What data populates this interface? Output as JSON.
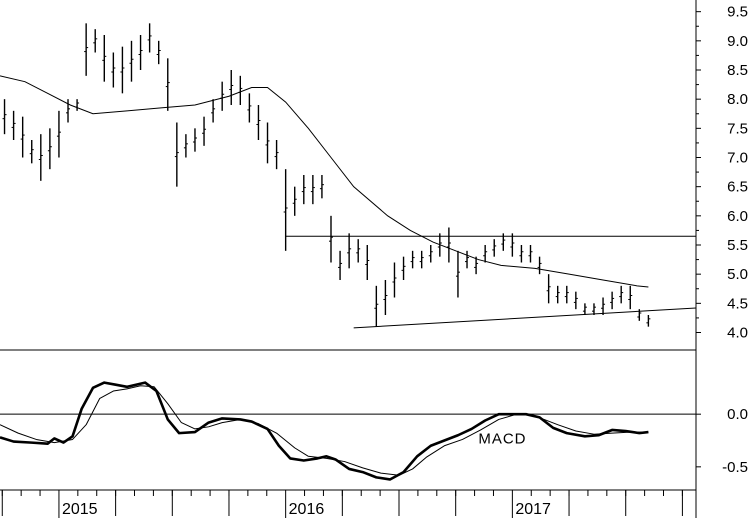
{
  "chart_data": [
    {
      "type": "ohlc",
      "panel": "price",
      "title": "",
      "xlabel": "",
      "ylabel": "",
      "ylim": [
        3.7,
        9.7
      ],
      "yticks": [
        4.0,
        4.5,
        5.0,
        5.5,
        6.0,
        6.5,
        7.0,
        7.5,
        8.0,
        8.5,
        9.0,
        9.5
      ],
      "ytick_labels": [
        "4.0",
        "4.5",
        "5.0",
        "5.5",
        "6.0",
        "6.5",
        "7.0",
        "7.5",
        "8.0",
        "8.5",
        "9.0",
        "9.5"
      ],
      "xlim": [
        2014.74,
        2017.81
      ],
      "x_year_labels": [
        {
          "x": 2015.0,
          "label": "2015"
        },
        {
          "x": 2016.0,
          "label": "2016"
        },
        {
          "x": 2017.0,
          "label": "2017"
        }
      ],
      "bars": [
        [
          2014.76,
          8.0,
          7.4
        ],
        [
          2014.8,
          7.8,
          7.3
        ],
        [
          2014.84,
          7.7,
          7.0
        ],
        [
          2014.88,
          7.3,
          6.9
        ],
        [
          2014.92,
          7.4,
          6.6
        ],
        [
          2014.96,
          7.5,
          6.8
        ],
        [
          2015.0,
          7.8,
          7.0
        ],
        [
          2015.04,
          8.0,
          7.6
        ],
        [
          2015.08,
          8.0,
          7.8
        ],
        [
          2015.12,
          9.3,
          8.4
        ],
        [
          2015.16,
          9.2,
          8.8
        ],
        [
          2015.2,
          9.1,
          8.3
        ],
        [
          2015.24,
          8.8,
          8.2
        ],
        [
          2015.28,
          8.9,
          8.1
        ],
        [
          2015.32,
          9.0,
          8.3
        ],
        [
          2015.36,
          9.1,
          8.5
        ],
        [
          2015.4,
          9.3,
          8.8
        ],
        [
          2015.44,
          9.0,
          8.6
        ],
        [
          2015.48,
          8.7,
          7.8
        ],
        [
          2015.52,
          7.6,
          6.5
        ],
        [
          2015.56,
          7.4,
          7.0
        ],
        [
          2015.6,
          7.5,
          7.1
        ],
        [
          2015.64,
          7.7,
          7.2
        ],
        [
          2015.68,
          8.0,
          7.6
        ],
        [
          2015.72,
          8.3,
          7.8
        ],
        [
          2015.76,
          8.5,
          7.9
        ],
        [
          2015.8,
          8.4,
          7.9
        ],
        [
          2015.84,
          8.1,
          7.6
        ],
        [
          2015.88,
          7.9,
          7.3
        ],
        [
          2015.92,
          7.6,
          6.9
        ],
        [
          2015.96,
          7.3,
          6.8
        ],
        [
          2016.0,
          6.8,
          5.4
        ],
        [
          2016.04,
          6.5,
          6.0
        ],
        [
          2016.08,
          6.7,
          6.2
        ],
        [
          2016.12,
          6.7,
          6.2
        ],
        [
          2016.16,
          6.7,
          6.3
        ],
        [
          2016.2,
          6.0,
          5.2
        ],
        [
          2016.24,
          5.4,
          4.9
        ],
        [
          2016.28,
          5.7,
          5.1
        ],
        [
          2016.32,
          5.6,
          5.2
        ],
        [
          2016.36,
          5.5,
          4.9
        ],
        [
          2016.4,
          4.8,
          4.1
        ],
        [
          2016.44,
          4.9,
          4.3
        ],
        [
          2016.48,
          5.2,
          4.6
        ],
        [
          2016.52,
          5.3,
          4.9
        ],
        [
          2016.56,
          5.4,
          5.1
        ],
        [
          2016.6,
          5.4,
          5.1
        ],
        [
          2016.64,
          5.5,
          5.2
        ],
        [
          2016.68,
          5.7,
          5.3
        ],
        [
          2016.72,
          5.8,
          5.2
        ],
        [
          2016.76,
          5.4,
          4.6
        ],
        [
          2016.8,
          5.4,
          5.1
        ],
        [
          2016.84,
          5.3,
          5.0
        ],
        [
          2016.88,
          5.5,
          5.2
        ],
        [
          2016.92,
          5.6,
          5.3
        ],
        [
          2016.96,
          5.7,
          5.4
        ],
        [
          2017.0,
          5.7,
          5.3
        ],
        [
          2017.04,
          5.5,
          5.2
        ],
        [
          2017.08,
          5.5,
          5.2
        ],
        [
          2017.12,
          5.3,
          5.0
        ],
        [
          2017.16,
          5.0,
          4.5
        ],
        [
          2017.2,
          4.8,
          4.5
        ],
        [
          2017.24,
          4.8,
          4.5
        ],
        [
          2017.28,
          4.7,
          4.4
        ],
        [
          2017.32,
          4.5,
          4.3
        ],
        [
          2017.36,
          4.5,
          4.3
        ],
        [
          2017.4,
          4.6,
          4.3
        ],
        [
          2017.44,
          4.7,
          4.4
        ],
        [
          2017.48,
          4.8,
          4.5
        ],
        [
          2017.52,
          4.8,
          4.4
        ],
        [
          2017.56,
          4.4,
          4.2
        ],
        [
          2017.6,
          4.3,
          4.1
        ]
      ],
      "moving_average": [
        [
          2014.74,
          8.4
        ],
        [
          2014.85,
          8.3
        ],
        [
          2014.95,
          8.1
        ],
        [
          2015.05,
          7.9
        ],
        [
          2015.15,
          7.75
        ],
        [
          2015.3,
          7.8
        ],
        [
          2015.45,
          7.85
        ],
        [
          2015.6,
          7.9
        ],
        [
          2015.75,
          8.05
        ],
        [
          2015.85,
          8.2
        ],
        [
          2015.92,
          8.2
        ],
        [
          2016.0,
          7.95
        ],
        [
          2016.1,
          7.5
        ],
        [
          2016.2,
          7.0
        ],
        [
          2016.3,
          6.5
        ],
        [
          2016.45,
          6.0
        ],
        [
          2016.55,
          5.75
        ],
        [
          2016.65,
          5.55
        ],
        [
          2016.75,
          5.4
        ],
        [
          2016.85,
          5.25
        ],
        [
          2016.95,
          5.15
        ],
        [
          2017.1,
          5.1
        ],
        [
          2017.25,
          5.0
        ],
        [
          2017.4,
          4.9
        ],
        [
          2017.55,
          4.8
        ],
        [
          2017.6,
          4.78
        ]
      ],
      "horizontal_line": {
        "y": 5.65,
        "x": [
          2016.0,
          2017.81
        ]
      },
      "trendline": {
        "x": [
          2016.3,
          2017.81
        ],
        "y": [
          4.08,
          4.42
        ]
      }
    },
    {
      "type": "line",
      "panel": "indicator",
      "title": "",
      "ylim": [
        -0.72,
        0.6
      ],
      "yticks": [
        0.0,
        -0.5
      ],
      "ytick_labels": [
        "0.0",
        "-0.5"
      ],
      "annotation": "MACD",
      "xlim": [
        2014.74,
        2017.81
      ],
      "series": [
        {
          "style": "thick",
          "points": [
            [
              2014.74,
              -0.22
            ],
            [
              2014.8,
              -0.26
            ],
            [
              2014.88,
              -0.27
            ],
            [
              2014.95,
              -0.28
            ],
            [
              2014.98,
              -0.23
            ],
            [
              2015.02,
              -0.27
            ],
            [
              2015.06,
              -0.21
            ],
            [
              2015.1,
              0.05
            ],
            [
              2015.15,
              0.25
            ],
            [
              2015.2,
              0.3
            ],
            [
              2015.25,
              0.28
            ],
            [
              2015.3,
              0.26
            ],
            [
              2015.38,
              0.3
            ],
            [
              2015.43,
              0.22
            ],
            [
              2015.48,
              -0.05
            ],
            [
              2015.53,
              -0.18
            ],
            [
              2015.6,
              -0.17
            ],
            [
              2015.66,
              -0.08
            ],
            [
              2015.72,
              -0.04
            ],
            [
              2015.8,
              -0.05
            ],
            [
              2015.85,
              -0.07
            ],
            [
              2015.92,
              -0.14
            ],
            [
              2015.97,
              -0.3
            ],
            [
              2016.02,
              -0.42
            ],
            [
              2016.08,
              -0.44
            ],
            [
              2016.14,
              -0.42
            ],
            [
              2016.18,
              -0.4
            ],
            [
              2016.22,
              -0.43
            ],
            [
              2016.28,
              -0.52
            ],
            [
              2016.34,
              -0.55
            ],
            [
              2016.4,
              -0.6
            ],
            [
              2016.46,
              -0.62
            ],
            [
              2016.52,
              -0.55
            ],
            [
              2016.58,
              -0.4
            ],
            [
              2016.64,
              -0.3
            ],
            [
              2016.7,
              -0.25
            ],
            [
              2016.76,
              -0.2
            ],
            [
              2016.82,
              -0.14
            ],
            [
              2016.88,
              -0.06
            ],
            [
              2016.94,
              0.0
            ],
            [
              2017.0,
              0.0
            ],
            [
              2017.06,
              0.0
            ],
            [
              2017.12,
              -0.03
            ],
            [
              2017.18,
              -0.13
            ],
            [
              2017.24,
              -0.18
            ],
            [
              2017.32,
              -0.21
            ],
            [
              2017.38,
              -0.2
            ],
            [
              2017.44,
              -0.15
            ],
            [
              2017.5,
              -0.16
            ],
            [
              2017.56,
              -0.18
            ],
            [
              2017.6,
              -0.17
            ]
          ]
        },
        {
          "style": "thin",
          "points": [
            [
              2014.74,
              -0.1
            ],
            [
              2014.82,
              -0.18
            ],
            [
              2014.9,
              -0.24
            ],
            [
              2014.98,
              -0.27
            ],
            [
              2015.06,
              -0.24
            ],
            [
              2015.12,
              -0.1
            ],
            [
              2015.18,
              0.15
            ],
            [
              2015.24,
              0.22
            ],
            [
              2015.3,
              0.24
            ],
            [
              2015.36,
              0.27
            ],
            [
              2015.42,
              0.26
            ],
            [
              2015.48,
              0.1
            ],
            [
              2015.54,
              -0.08
            ],
            [
              2015.6,
              -0.14
            ],
            [
              2015.66,
              -0.12
            ],
            [
              2015.72,
              -0.08
            ],
            [
              2015.8,
              -0.05
            ],
            [
              2015.88,
              -0.09
            ],
            [
              2015.96,
              -0.18
            ],
            [
              2016.04,
              -0.32
            ],
            [
              2016.1,
              -0.4
            ],
            [
              2016.18,
              -0.42
            ],
            [
              2016.26,
              -0.45
            ],
            [
              2016.34,
              -0.51
            ],
            [
              2016.42,
              -0.56
            ],
            [
              2016.5,
              -0.58
            ],
            [
              2016.56,
              -0.52
            ],
            [
              2016.62,
              -0.41
            ],
            [
              2016.7,
              -0.3
            ],
            [
              2016.78,
              -0.24
            ],
            [
              2016.86,
              -0.15
            ],
            [
              2016.94,
              -0.05
            ],
            [
              2017.02,
              0.0
            ],
            [
              2017.08,
              -0.01
            ],
            [
              2017.14,
              -0.05
            ],
            [
              2017.2,
              -0.1
            ],
            [
              2017.28,
              -0.16
            ],
            [
              2017.36,
              -0.19
            ],
            [
              2017.44,
              -0.18
            ],
            [
              2017.52,
              -0.17
            ],
            [
              2017.6,
              -0.17
            ]
          ]
        }
      ]
    }
  ]
}
